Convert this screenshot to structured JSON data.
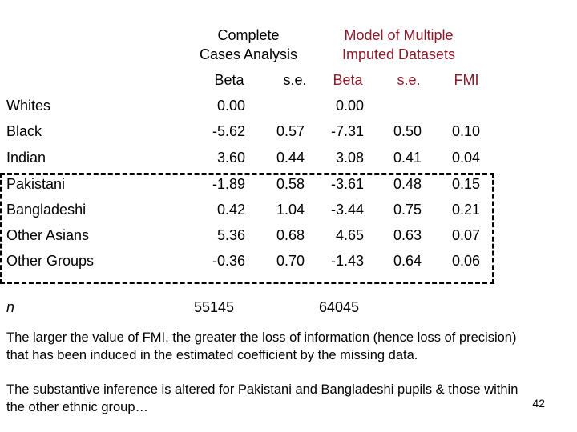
{
  "headers": {
    "complete_cases": [
      "Complete",
      "Cases Analysis"
    ],
    "model_multiple": [
      "Model of Multiple",
      "Imputed Datasets"
    ],
    "columns": [
      "Beta",
      "s.e.",
      "Beta",
      "s.e.",
      "FMI"
    ]
  },
  "rows": [
    {
      "label": "Whites",
      "beta1": "0.00",
      "se1": "",
      "beta2": "0.00",
      "se2": "",
      "fmi": ""
    },
    {
      "label": "Black",
      "beta1": "-5.62",
      "se1": "0.57",
      "beta2": "-7.31",
      "se2": "0.50",
      "fmi": "0.10"
    },
    {
      "label": "Indian",
      "beta1": "3.60",
      "se1": "0.44",
      "beta2": "3.08",
      "se2": "0.41",
      "fmi": "0.04"
    },
    {
      "label": "Pakistani",
      "beta1": "-1.89",
      "se1": "0.58",
      "beta2": "-3.61",
      "se2": "0.48",
      "fmi": "0.15"
    },
    {
      "label": "Bangladeshi",
      "beta1": "0.42",
      "se1": "1.04",
      "beta2": "-3.44",
      "se2": "0.75",
      "fmi": "0.21"
    },
    {
      "label": "Other Asians",
      "beta1": "5.36",
      "se1": "0.68",
      "beta2": "4.65",
      "se2": "0.63",
      "fmi": "0.07"
    },
    {
      "label": "Other Groups",
      "beta1": "-0.36",
      "se1": "0.70",
      "beta2": "-1.43",
      "se2": "0.64",
      "fmi": "0.06"
    }
  ],
  "n_row": {
    "label": "n",
    "complete": "55145",
    "imputed": "64045"
  },
  "notes": [
    "The larger the value of FMI, the greater the loss of information (hence loss of precision) that has been induced in the estimated coefficient by the missing data.",
    "The substantive inference is altered for Pakistani and Bangladeshi pupils & those within the other ethnic group…"
  ],
  "page_number": "42",
  "colors": {
    "header_red": "#8b1a2b",
    "text": "#000000"
  }
}
